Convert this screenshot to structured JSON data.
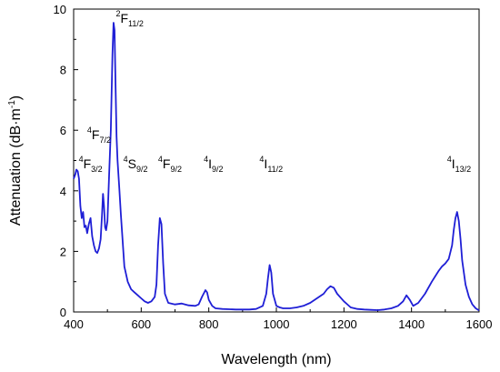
{
  "chart_data": {
    "type": "line",
    "title": "",
    "xlabel": "Wavelength (nm)",
    "ylabel": "Attenuation (dB·m",
    "ylabel_sup": "-1",
    "ylabel_close": ")",
    "xlim": [
      400,
      1600
    ],
    "ylim": [
      0,
      10
    ],
    "xticks": [
      400,
      600,
      800,
      1000,
      1200,
      1400,
      1600
    ],
    "yticks": [
      0,
      2,
      4,
      6,
      8,
      10
    ],
    "grid": false,
    "legend": "none",
    "line_color": "#1f1fd6",
    "series": [
      {
        "x": [
          400,
          405,
          408,
          412,
          416,
          420,
          424,
          428,
          432,
          436,
          440,
          445,
          450,
          455,
          460,
          465,
          470,
          475,
          480,
          484,
          487,
          490,
          493,
          496,
          500,
          505,
          510,
          515,
          518,
          521,
          524,
          527,
          530,
          535,
          540,
          550,
          560,
          570,
          580,
          590,
          600,
          610,
          620,
          630,
          640,
          645,
          650,
          655,
          660,
          665,
          670,
          680,
          700,
          720,
          740,
          760,
          770,
          780,
          790,
          795,
          800,
          810,
          820,
          840,
          860,
          880,
          900,
          920,
          940,
          960,
          970,
          975,
          980,
          985,
          990,
          1000,
          1010,
          1020,
          1040,
          1060,
          1080,
          1100,
          1120,
          1140,
          1150,
          1160,
          1170,
          1180,
          1200,
          1220,
          1240,
          1260,
          1280,
          1300,
          1320,
          1340,
          1360,
          1375,
          1385,
          1395,
          1405,
          1420,
          1440,
          1460,
          1480,
          1490,
          1500,
          1510,
          1520,
          1525,
          1530,
          1535,
          1540,
          1545,
          1550,
          1560,
          1570,
          1580,
          1590,
          1600
        ],
        "y": [
          4.4,
          4.55,
          4.7,
          4.65,
          4.4,
          3.5,
          3.1,
          3.3,
          2.8,
          2.85,
          2.6,
          2.9,
          3.1,
          2.5,
          2.2,
          2.0,
          1.95,
          2.1,
          2.4,
          3.2,
          3.9,
          3.5,
          2.8,
          2.7,
          3.0,
          4.5,
          6.0,
          8.5,
          9.55,
          9.3,
          7.5,
          5.8,
          5.0,
          4.1,
          3.2,
          1.5,
          1.0,
          0.75,
          0.65,
          0.55,
          0.45,
          0.35,
          0.3,
          0.35,
          0.5,
          0.9,
          2.2,
          3.1,
          2.9,
          1.6,
          0.6,
          0.3,
          0.25,
          0.28,
          0.22,
          0.2,
          0.25,
          0.5,
          0.72,
          0.65,
          0.4,
          0.2,
          0.12,
          0.1,
          0.09,
          0.08,
          0.08,
          0.08,
          0.1,
          0.2,
          0.6,
          1.1,
          1.55,
          1.3,
          0.6,
          0.2,
          0.15,
          0.12,
          0.12,
          0.15,
          0.2,
          0.3,
          0.45,
          0.6,
          0.75,
          0.85,
          0.8,
          0.6,
          0.35,
          0.15,
          0.1,
          0.08,
          0.07,
          0.06,
          0.08,
          0.12,
          0.2,
          0.35,
          0.55,
          0.4,
          0.2,
          0.3,
          0.6,
          1.0,
          1.35,
          1.5,
          1.6,
          1.75,
          2.2,
          2.7,
          3.1,
          3.3,
          3.0,
          2.4,
          1.7,
          0.9,
          0.5,
          0.25,
          0.12,
          0.05
        ]
      }
    ],
    "annotations": [
      {
        "main": "2",
        "base": "F",
        "sub": "11/2",
        "x": 525,
        "y": 9.55
      },
      {
        "main": "4",
        "base": "F",
        "sub": "7/2",
        "x": 440,
        "y": 5.7
      },
      {
        "main": "4",
        "base": "F",
        "sub": "3/2",
        "x": 415,
        "y": 4.75
      },
      {
        "main": "4",
        "base": "S",
        "sub": "9/2",
        "x": 547,
        "y": 4.75
      },
      {
        "main": "4",
        "base": "F",
        "sub": "9/2",
        "x": 650,
        "y": 4.75
      },
      {
        "main": "4",
        "base": "I",
        "sub": "9/2",
        "x": 785,
        "y": 4.75
      },
      {
        "main": "4",
        "base": "I",
        "sub": "11/2",
        "x": 950,
        "y": 4.75
      },
      {
        "main": "4",
        "base": "I",
        "sub": "13/2",
        "x": 1505,
        "y": 4.75
      }
    ]
  }
}
